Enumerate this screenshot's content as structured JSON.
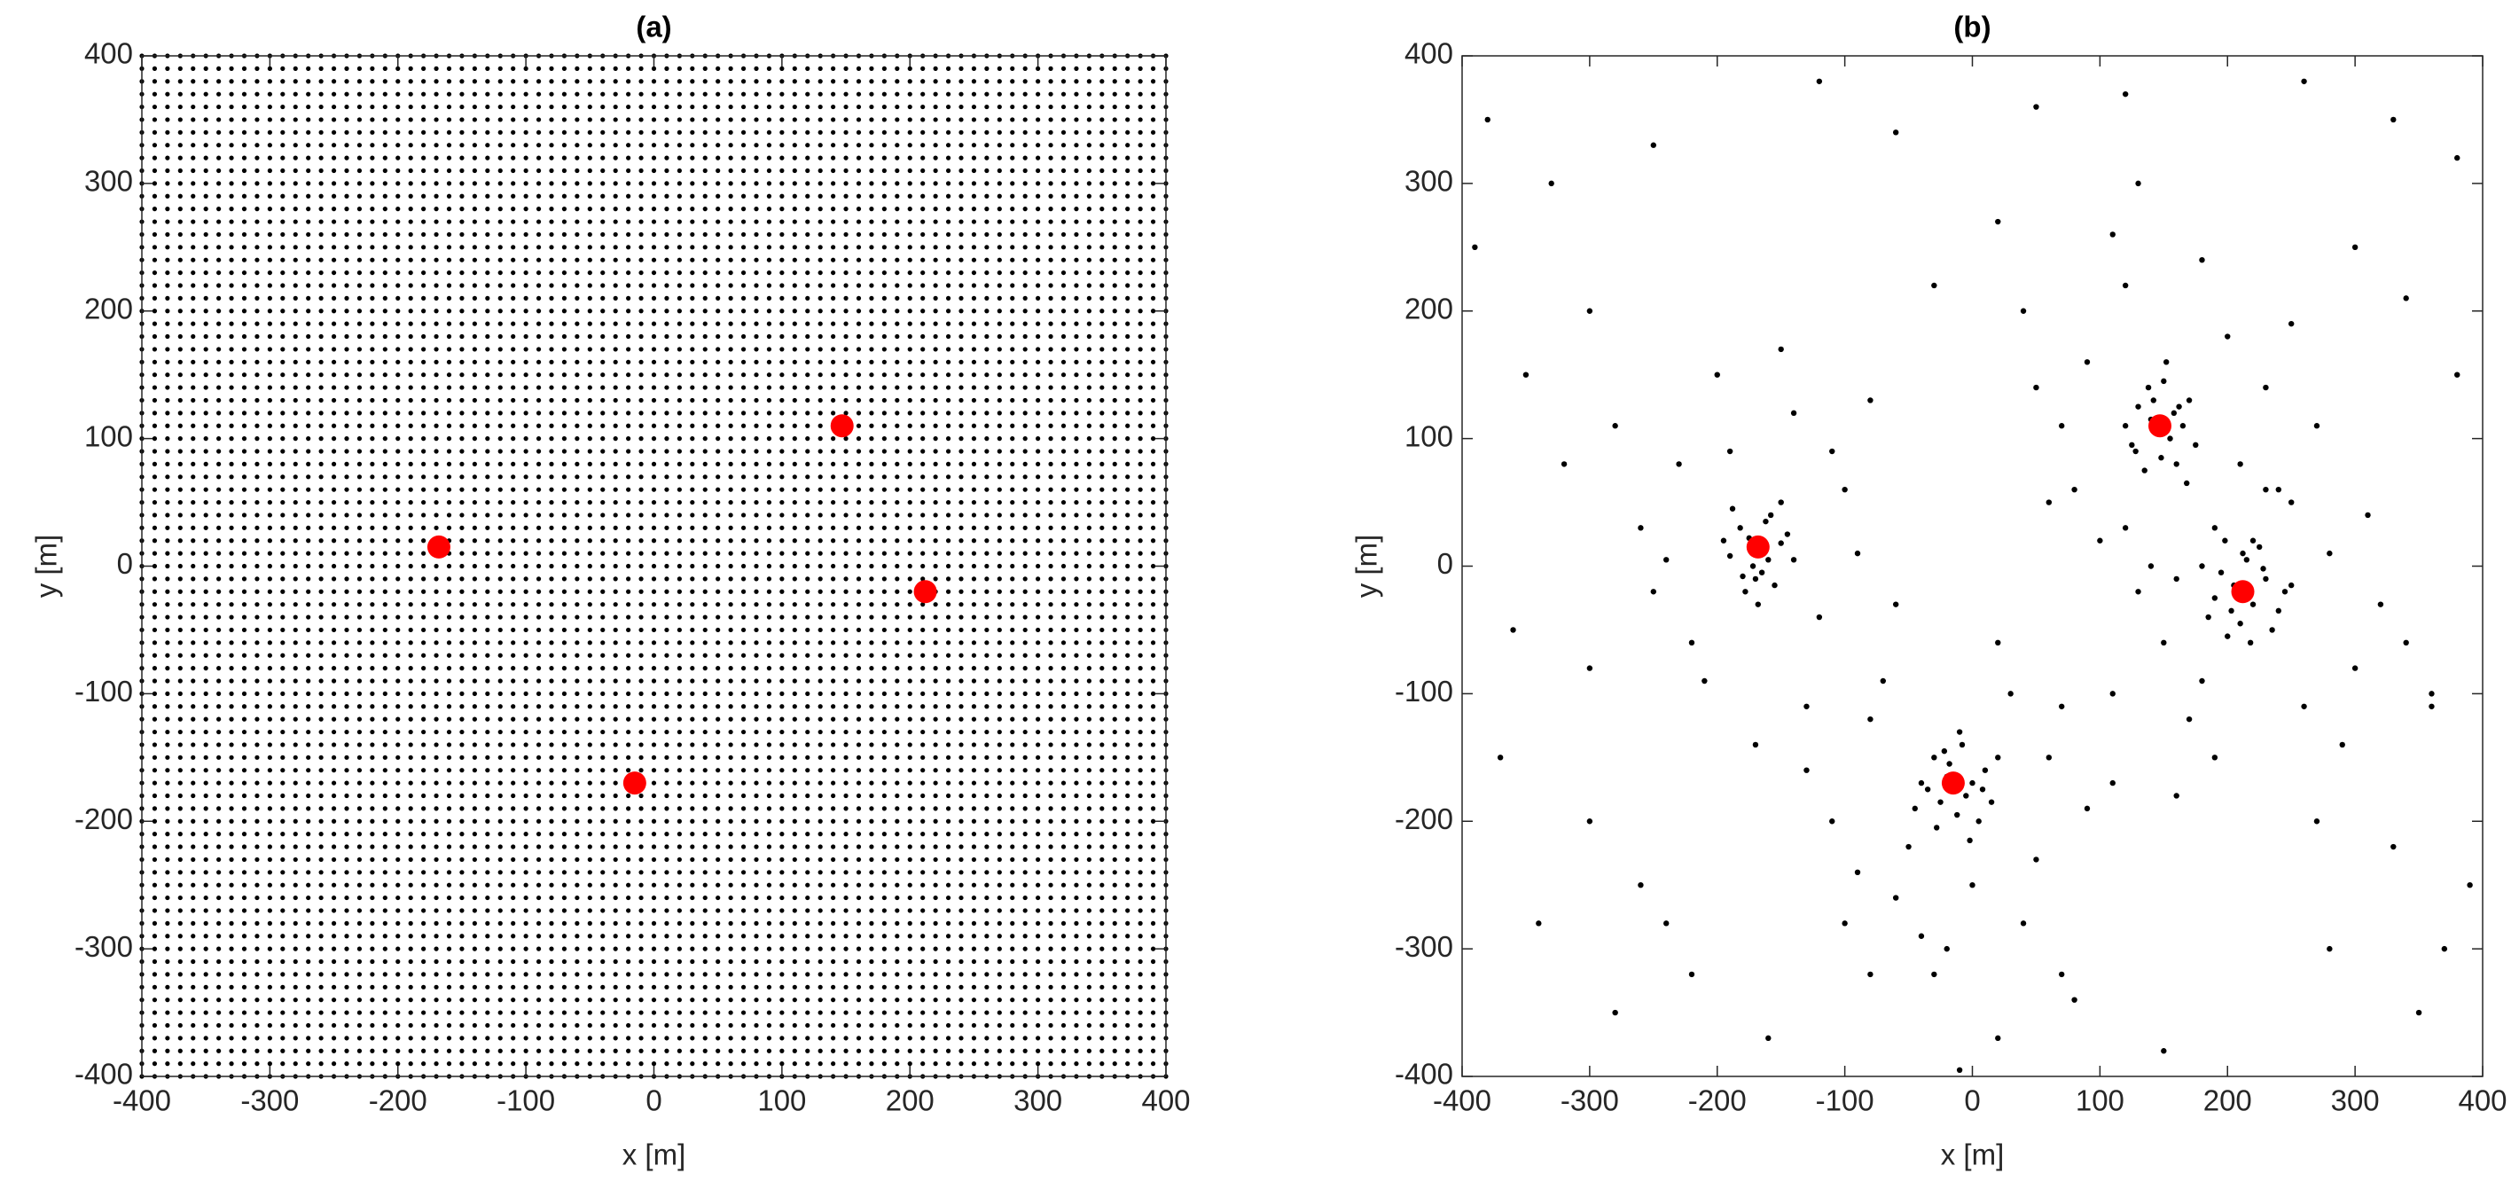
{
  "chart_data": [
    {
      "type": "scatter",
      "title": "(a)",
      "xlabel": "x [m]",
      "ylabel": "y [m]",
      "xlim": [
        -400,
        400
      ],
      "ylim": [
        -400,
        400
      ],
      "xticks": [
        -400,
        -300,
        -200,
        -100,
        0,
        100,
        200,
        300,
        400
      ],
      "yticks": [
        -400,
        -300,
        -200,
        -100,
        0,
        100,
        200,
        300,
        400
      ],
      "series": [
        {
          "color": "#000000",
          "mesh": true,
          "x": [
            -400,
            -390,
            -380,
            -370,
            -360,
            -350,
            -340,
            -330,
            -320,
            -310,
            -300,
            -290,
            -280,
            -270,
            -260,
            -250,
            -240,
            -230,
            -220,
            -210,
            -200,
            -190,
            -180,
            -170,
            -160,
            -150,
            -140,
            -130,
            -120,
            -110,
            -100,
            -90,
            -80,
            -70,
            -60,
            -50,
            -40,
            -30,
            -20,
            -10,
            0,
            10,
            20,
            30,
            40,
            50,
            60,
            70,
            80,
            90,
            100,
            110,
            120,
            130,
            140,
            150,
            160,
            170,
            180,
            190,
            200,
            210,
            220,
            230,
            240,
            250,
            260,
            270,
            280,
            290,
            300,
            310,
            320,
            330,
            340,
            350,
            360,
            370,
            380,
            390,
            400
          ],
          "values": [
            -400,
            -390,
            -380,
            -370,
            -360,
            -350,
            -340,
            -330,
            -320,
            -310,
            -300,
            -290,
            -280,
            -270,
            -260,
            -250,
            -240,
            -230,
            -220,
            -210,
            -200,
            -190,
            -180,
            -170,
            -160,
            -150,
            -140,
            -130,
            -120,
            -110,
            -100,
            -90,
            -80,
            -70,
            -60,
            -50,
            -40,
            -30,
            -20,
            -10,
            0,
            10,
            20,
            30,
            40,
            50,
            60,
            70,
            80,
            90,
            100,
            110,
            120,
            130,
            140,
            150,
            160,
            170,
            180,
            190,
            200,
            210,
            220,
            230,
            240,
            250,
            260,
            270,
            280,
            290,
            300,
            310,
            320,
            330,
            340,
            350,
            360,
            370,
            380,
            390,
            400
          ]
        },
        {
          "color": "#ff0000",
          "x": [
            -168,
            -15,
            147,
            212
          ],
          "values": [
            15,
            -170,
            110,
            -20
          ]
        }
      ]
    },
    {
      "type": "scatter",
      "title": "(b)",
      "xlabel": "x [m]",
      "ylabel": "y [m]",
      "xlim": [
        -400,
        400
      ],
      "ylim": [
        -400,
        400
      ],
      "xticks": [
        -400,
        -300,
        -200,
        -100,
        0,
        100,
        200,
        300,
        400
      ],
      "yticks": [
        -400,
        -300,
        -200,
        -100,
        0,
        100,
        200,
        300,
        400
      ],
      "series": [
        {
          "color": "#000000",
          "x": [
            -175,
            -160,
            -182,
            -150,
            -170,
            -158,
            -190,
            -165,
            -145,
            -178,
            -188,
            -155,
            -162,
            -172,
            -140,
            -195,
            -168,
            -150,
            -180,
            -163,
            -230,
            -120,
            -250,
            -100,
            -210,
            -140,
            -260,
            -90,
            -200,
            -130,
            -280,
            -110,
            -220,
            -60,
            -170,
            -240,
            -150,
            -300,
            -80,
            -190,
            -20,
            -5,
            -30,
            0,
            -12,
            -25,
            10,
            -8,
            -35,
            5,
            -18,
            15,
            -40,
            -2,
            -28,
            20,
            -10,
            -45,
            8,
            -22,
            -80,
            50,
            -110,
            60,
            -60,
            30,
            -90,
            90,
            -40,
            0,
            -130,
            40,
            -70,
            70,
            -20,
            -50,
            110,
            -100,
            20,
            -30,
            140,
            155,
            130,
            165,
            148,
            125,
            170,
            138,
            158,
            145,
            160,
            135,
            150,
            175,
            120,
            142,
            168,
            152,
            128,
            162,
            90,
            210,
            70,
            230,
            120,
            190,
            60,
            250,
            100,
            180,
            40,
            270,
            110,
            200,
            80,
            160,
            220,
            130,
            240,
            50,
            205,
            220,
            195,
            230,
            210,
            190,
            240,
            215,
            200,
            225,
            185,
            235,
            212,
            198,
            245,
            218,
            180,
            228,
            203,
            250,
            150,
            280,
            130,
            300,
            170,
            260,
            120,
            320,
            190,
            250,
            340,
            160,
            290,
            110,
            230,
            310,
            180,
            270,
            140,
            360,
            -380,
            -330,
            -250,
            -120,
            -60,
            50,
            120,
            260,
            330,
            380,
            -390,
            -350,
            -300,
            -30,
            20,
            -320,
            300,
            340,
            380,
            -260,
            -370,
            -340,
            -280,
            -220,
            -160,
            80,
            150,
            280,
            350,
            390,
            -360,
            -300,
            -80,
            20,
            70,
            -240,
            330,
            370,
            360,
            -10
          ],
          "values": [
            22,
            5,
            30,
            18,
            -10,
            40,
            8,
            -5,
            25,
            -20,
            45,
            -15,
            35,
            0,
            5,
            20,
            -30,
            50,
            -8,
            12,
            80,
            -40,
            -20,
            60,
            -90,
            120,
            30,
            10,
            150,
            -110,
            110,
            90,
            -60,
            -30,
            -140,
            5,
            170,
            -80,
            130,
            90,
            -165,
            -180,
            -150,
            -170,
            -195,
            -185,
            -160,
            -140,
            -175,
            -200,
            -155,
            -185,
            -170,
            -215,
            -205,
            -150,
            -130,
            -190,
            -175,
            -145,
            -120,
            -230,
            -200,
            -150,
            -260,
            -100,
            -240,
            -190,
            -290,
            -250,
            -160,
            -280,
            -90,
            -110,
            -300,
            -220,
            -170,
            -280,
            -60,
            -320,
            115,
            100,
            125,
            110,
            85,
            95,
            130,
            140,
            120,
            105,
            80,
            75,
            145,
            95,
            110,
            130,
            65,
            160,
            90,
            125,
            160,
            80,
            110,
            140,
            220,
            30,
            50,
            190,
            20,
            240,
            200,
            110,
            260,
            180,
            60,
            -10,
            20,
            300,
            60,
            140,
            -15,
            -30,
            -5,
            -10,
            -45,
            -25,
            -35,
            5,
            -55,
            15,
            -40,
            -50,
            10,
            20,
            -20,
            -60,
            0,
            -2,
            -35,
            -15,
            -60,
            10,
            -20,
            -80,
            -120,
            -110,
            30,
            -30,
            -150,
            50,
            -60,
            -180,
            -140,
            -100,
            60,
            40,
            -90,
            -200,
            0,
            -110,
            350,
            300,
            330,
            380,
            340,
            360,
            370,
            380,
            350,
            320,
            250,
            150,
            200,
            220,
            270,
            80,
            250,
            210,
            150,
            -250,
            -150,
            -280,
            -350,
            -320,
            -370,
            -340,
            -380,
            -300,
            -350,
            -250,
            -50,
            -200,
            -320,
            -370,
            -320,
            -280,
            -220,
            -300,
            -100,
            -395
          ]
        },
        {
          "color": "#ff0000",
          "x": [
            -168,
            -15,
            147,
            212
          ],
          "values": [
            15,
            -170,
            110,
            -20
          ]
        }
      ]
    }
  ]
}
